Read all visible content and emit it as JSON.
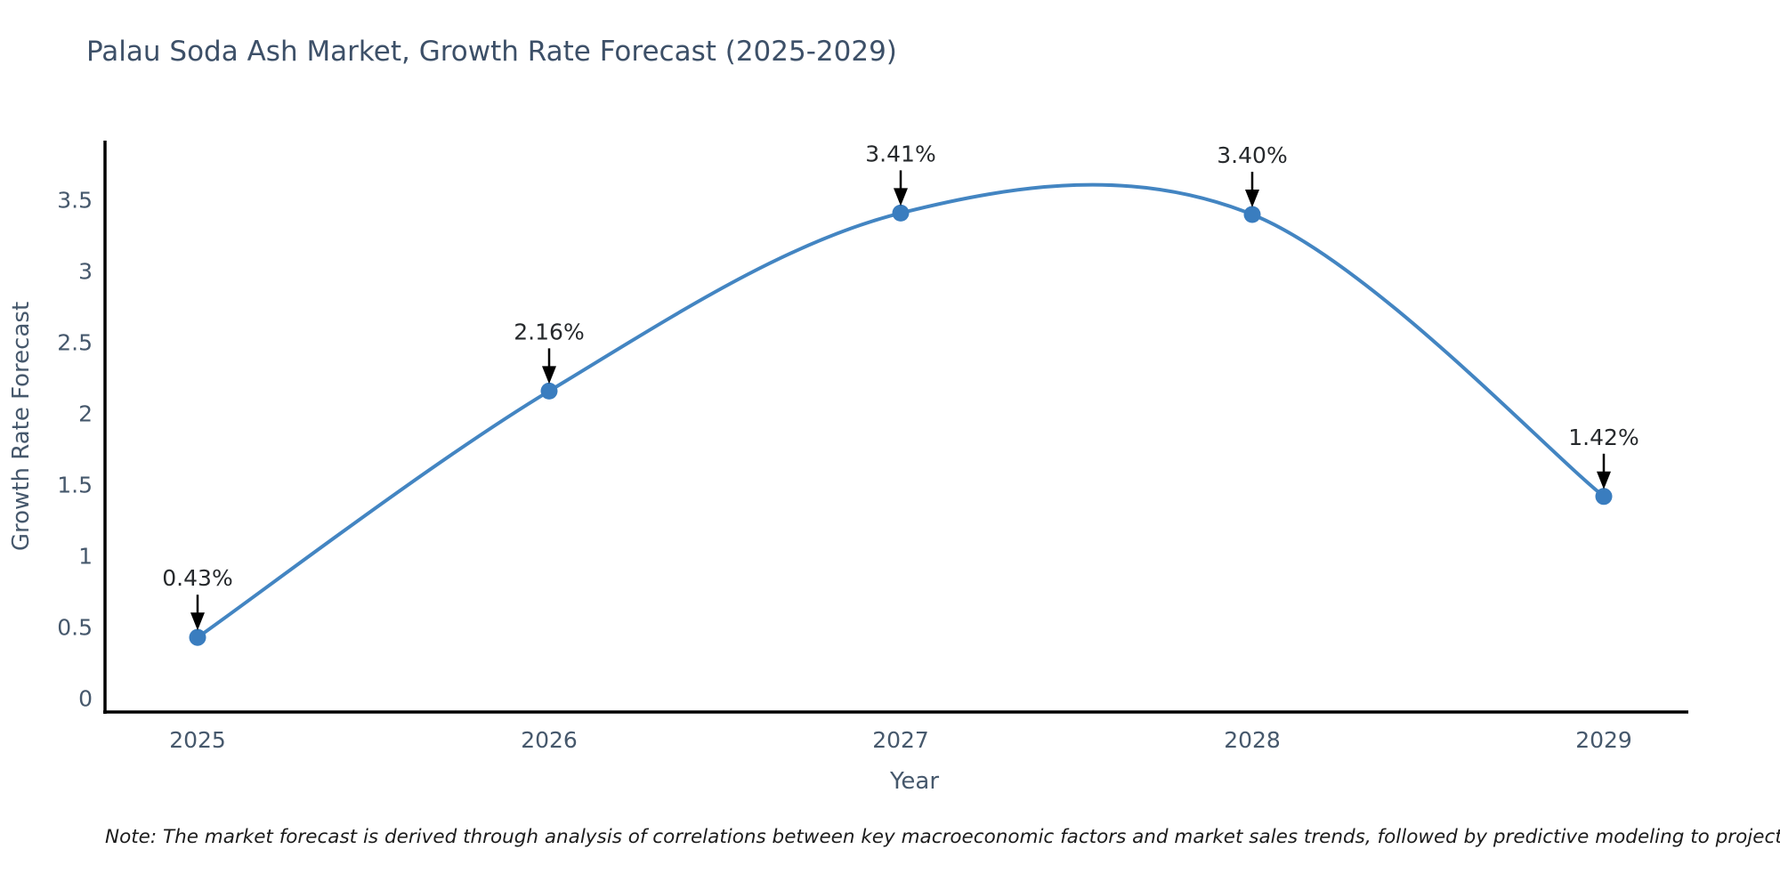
{
  "title": "Palau Soda Ash Market, Growth Rate Forecast (2025-2029)",
  "footnote": "Note: The market forecast is derived through analysis of correlations between key macroeconomic factors and market sales trends, followed by predictive modeling to project future sales",
  "chart_data": {
    "type": "line",
    "title": "Palau Soda Ash Market, Growth Rate Forecast (2025-2029)",
    "xlabel": "Year",
    "ylabel": "Growth Rate Forecast",
    "categories": [
      "2025",
      "2026",
      "2027",
      "2028",
      "2029"
    ],
    "values": [
      0.43,
      2.16,
      3.41,
      3.4,
      1.42
    ],
    "point_labels": [
      "0.43%",
      "2.16%",
      "3.41%",
      "3.40%",
      "1.42%"
    ],
    "yticks": [
      0,
      0.5,
      1,
      1.5,
      2,
      2.5,
      3,
      3.5
    ],
    "ylim": [
      0,
      4.0
    ],
    "grid": false,
    "legend_position": "none",
    "smooth_curve": true,
    "colors": {
      "line": "#4385c2",
      "marker": "#3a7dbf",
      "axis": "#000000",
      "tick_text": "#46586c",
      "axis_label_text": "#46586c",
      "annotation_text": "#26292c",
      "arrow": "#000000"
    }
  }
}
